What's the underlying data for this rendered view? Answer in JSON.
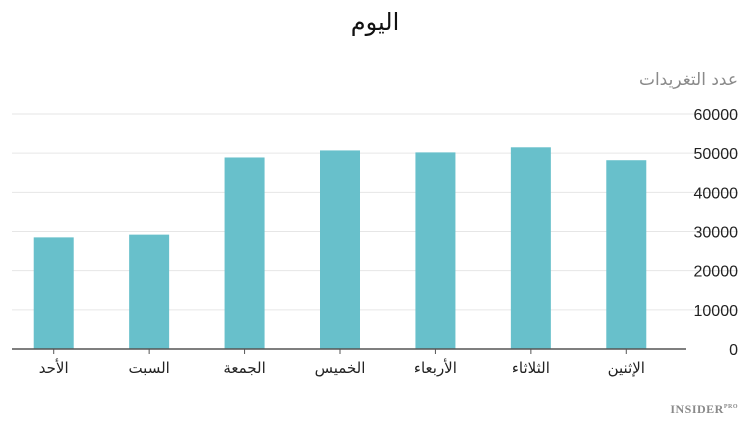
{
  "chart_data": {
    "type": "bar",
    "title": "اليوم",
    "xlabel": "",
    "ylabel": "عدد التغريدات",
    "categories": [
      "الإثنين",
      "الثلاثاء",
      "الأربعاء",
      "الخميس",
      "الجمعة",
      "السبت",
      "الأحد"
    ],
    "values": [
      48200,
      51500,
      50200,
      50700,
      48900,
      29200,
      28500
    ],
    "ylim": [
      0,
      60000
    ],
    "yticks": [
      0,
      10000,
      20000,
      30000,
      40000,
      50000,
      60000
    ],
    "category_order": "right-to-left",
    "y_axis_side": "right",
    "grid": true,
    "bar_color": "#68c0cb",
    "grid_color": "#e6e6e6",
    "axis_color": "#555555"
  },
  "brand": {
    "name": "INSIDER",
    "suffix": "PRO"
  }
}
